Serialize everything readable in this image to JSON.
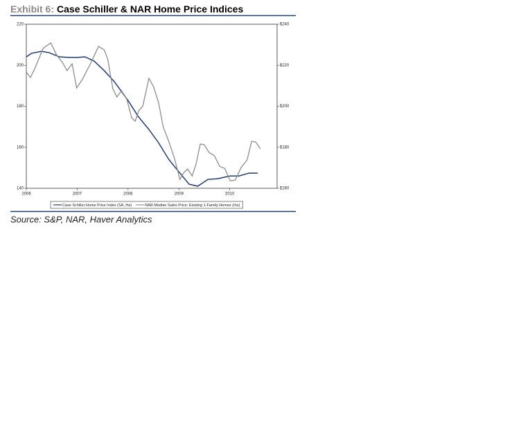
{
  "chart_data": {
    "type": "line",
    "title_prefix": "Exhibit 6:",
    "title": "Case Schiller & NAR Home Price Indices",
    "source": "Source: S&P, NAR, Haver Analytics",
    "xlim": [
      2006,
      2010.93
    ],
    "xticks": [
      2006,
      2007,
      2008,
      2009,
      2010
    ],
    "ylim": [
      140,
      220
    ],
    "yticks": [
      140,
      160,
      180,
      200,
      220
    ],
    "y2lim": [
      160,
      240
    ],
    "y2ticks": [
      {
        "value": 160,
        "label": "$160"
      },
      {
        "value": 180,
        "label": "$180"
      },
      {
        "value": 200,
        "label": "$200"
      },
      {
        "value": 220,
        "label": "$220"
      },
      {
        "value": 240,
        "label": "$240"
      }
    ],
    "legend": "bottom",
    "series": [
      {
        "name": "Case Schiller Home Price Index (SA, lhs)",
        "color": "#1f3a6e",
        "x": [
          2006.0,
          2006.1,
          2006.3,
          2006.45,
          2006.65,
          2006.85,
          2007.0,
          2007.15,
          2007.33,
          2007.53,
          2007.73,
          2008.0,
          2008.2,
          2008.4,
          2008.6,
          2008.8,
          2009.0,
          2009.2,
          2009.37,
          2009.57,
          2009.77,
          2010.0,
          2010.18,
          2010.38,
          2010.55
        ],
        "values": [
          204.1,
          205.8,
          206.8,
          206.1,
          204.1,
          203.8,
          203.8,
          204.1,
          202.1,
          197.4,
          192,
          182.8,
          175,
          169,
          162.2,
          154.1,
          148,
          142,
          141,
          144.3,
          144.7,
          146,
          146,
          147.4,
          147.4
        ]
      },
      {
        "name": "NAR Median Sales Price: Existing 1-Family Homes (rhs)",
        "color": "#8c8c8c",
        "axis": "y2",
        "x": [
          2006.0,
          2006.08,
          2006.16,
          2006.33,
          2006.48,
          2006.6,
          2006.71,
          2006.8,
          2006.9,
          2006.99,
          2007.1,
          2007.26,
          2007.42,
          2007.53,
          2007.6,
          2007.7,
          2007.78,
          2007.87,
          2007.97,
          2008.07,
          2008.14,
          2008.21,
          2008.29,
          2008.41,
          2008.5,
          2008.6,
          2008.69,
          2008.8,
          2008.91,
          2009.02,
          2009.09,
          2009.17,
          2009.26,
          2009.34,
          2009.42,
          2009.5,
          2009.59,
          2009.7,
          2009.8,
          2009.9,
          2010.01,
          2010.11,
          2010.22,
          2010.34,
          2010.43,
          2010.51,
          2010.6
        ],
        "values": [
          216.7,
          214,
          218,
          228.2,
          230.9,
          224.8,
          221.4,
          217.4,
          220.7,
          208.9,
          213,
          220.7,
          229.2,
          227.5,
          223.1,
          208.6,
          204.5,
          207.6,
          203.9,
          194.4,
          192.7,
          197.8,
          200.1,
          213.6,
          209.6,
          201.8,
          190,
          182.9,
          174.8,
          164.3,
          167.4,
          169.4,
          166,
          172.1,
          181.6,
          181.2,
          177.5,
          175.8,
          170.7,
          169.7,
          163.6,
          164,
          170,
          173.8,
          182.9,
          182.6,
          179.2
        ]
      }
    ]
  }
}
